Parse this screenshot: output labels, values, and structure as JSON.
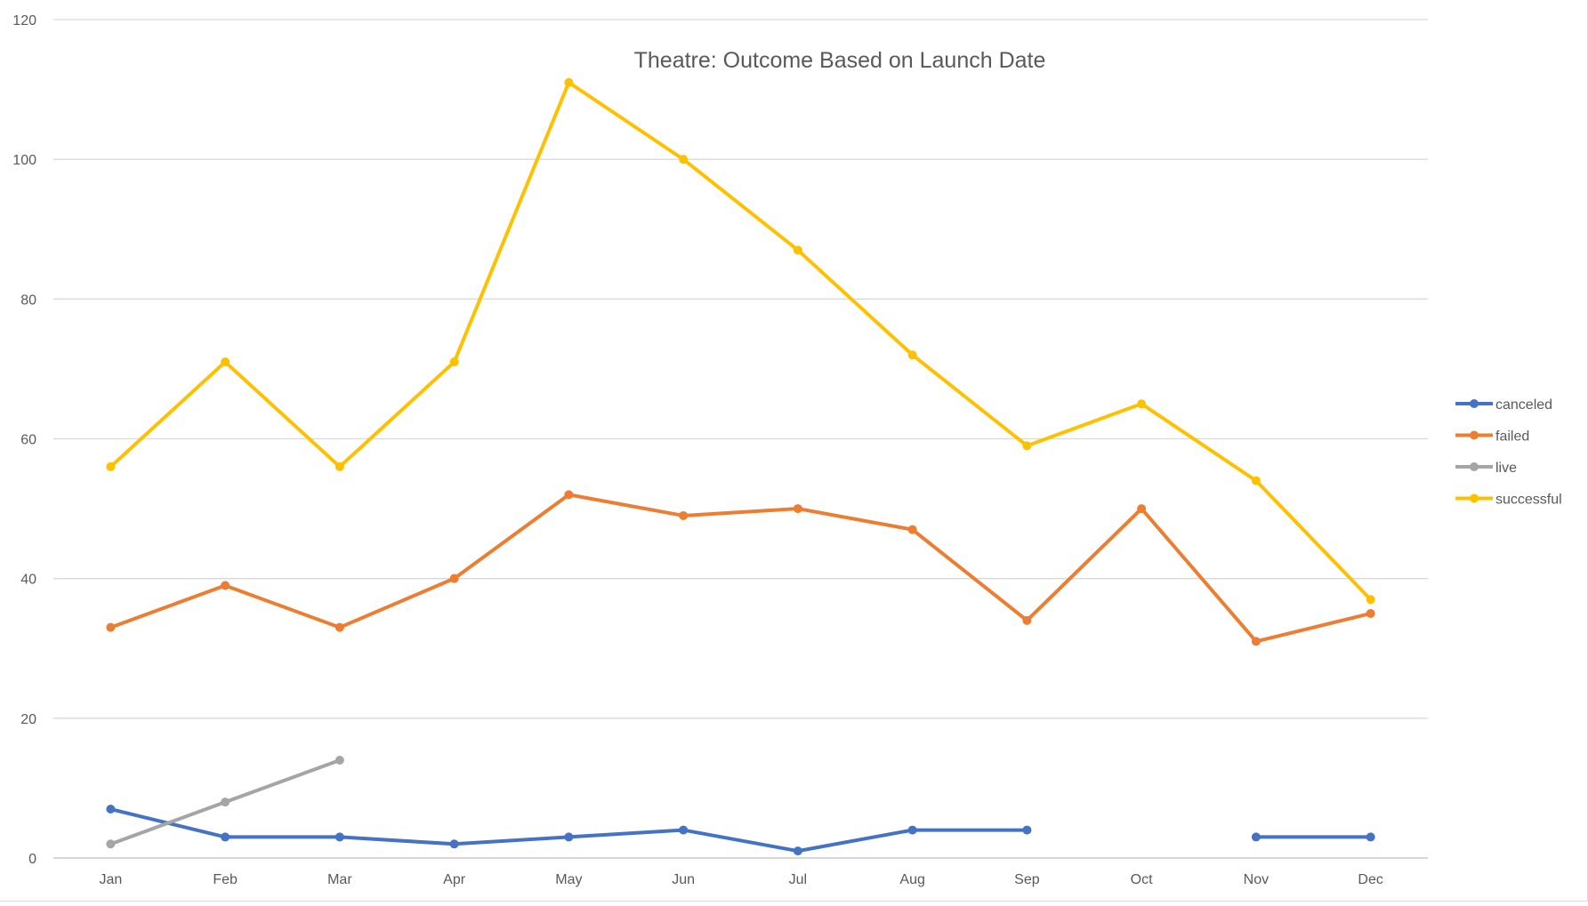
{
  "chart_data": {
    "type": "line",
    "title": "Theatre: Outcome Based on Launch Date",
    "xlabel": "",
    "ylabel": "",
    "categories": [
      "Jan",
      "Feb",
      "Mar",
      "Apr",
      "May",
      "Jun",
      "Jul",
      "Aug",
      "Sep",
      "Oct",
      "Nov",
      "Dec"
    ],
    "ylim": [
      0,
      120
    ],
    "yticks": [
      0,
      20,
      40,
      60,
      80,
      100,
      120
    ],
    "grid": true,
    "legend_position": "right",
    "series": [
      {
        "name": "canceled",
        "color": "#4472C4",
        "values": [
          7,
          3,
          3,
          2,
          3,
          4,
          1,
          4,
          4,
          null,
          3,
          3
        ]
      },
      {
        "name": "failed",
        "color": "#ED7D31",
        "values": [
          33,
          39,
          33,
          40,
          52,
          49,
          50,
          47,
          34,
          50,
          31,
          35
        ]
      },
      {
        "name": "live",
        "color": "#A5A5A5",
        "values": [
          2,
          8,
          14,
          null,
          null,
          null,
          null,
          null,
          null,
          null,
          null,
          null
        ]
      },
      {
        "name": "successful",
        "color": "#FFC000",
        "values": [
          56,
          71,
          56,
          71,
          111,
          100,
          87,
          72,
          59,
          65,
          54,
          37
        ]
      }
    ]
  }
}
